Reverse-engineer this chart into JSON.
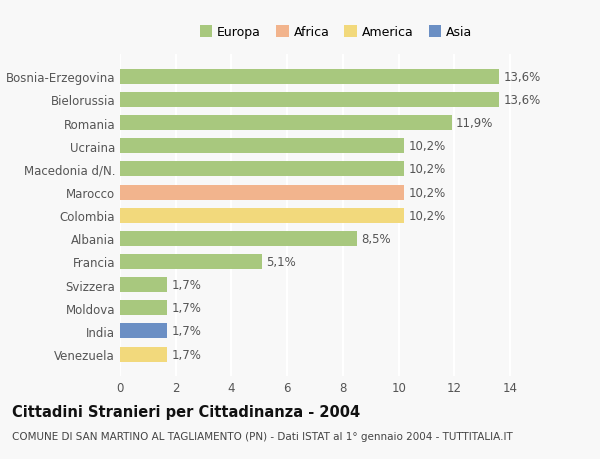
{
  "categories": [
    "Venezuela",
    "India",
    "Moldova",
    "Svizzera",
    "Francia",
    "Albania",
    "Colombia",
    "Marocco",
    "Macedonia d/N.",
    "Ucraina",
    "Romania",
    "Bielorussia",
    "Bosnia-Erzegovina"
  ],
  "values": [
    1.7,
    1.7,
    1.7,
    1.7,
    5.1,
    8.5,
    10.2,
    10.2,
    10.2,
    10.2,
    11.9,
    13.6,
    13.6
  ],
  "labels": [
    "1,7%",
    "1,7%",
    "1,7%",
    "1,7%",
    "5,1%",
    "8,5%",
    "10,2%",
    "10,2%",
    "10,2%",
    "10,2%",
    "11,9%",
    "13,6%",
    "13,6%"
  ],
  "continents": [
    "America",
    "Asia",
    "Europa",
    "Europa",
    "Europa",
    "Europa",
    "America",
    "Africa",
    "Europa",
    "Europa",
    "Europa",
    "Europa",
    "Europa"
  ],
  "colors": {
    "Europa": "#a8c87e",
    "Africa": "#f2b48d",
    "America": "#f2d97c",
    "Asia": "#6b8fc4"
  },
  "legend_order": [
    "Europa",
    "Africa",
    "America",
    "Asia"
  ],
  "xlim": [
    0,
    15.5
  ],
  "xticks": [
    0,
    2,
    4,
    6,
    8,
    10,
    12,
    14
  ],
  "title": "Cittadini Stranieri per Cittadinanza - 2004",
  "subtitle": "COMUNE DI SAN MARTINO AL TAGLIAMENTO (PN) - Dati ISTAT al 1° gennaio 2004 - TUTTITALIA.IT",
  "bg_color": "#f8f8f8",
  "bar_height": 0.65,
  "label_fontsize": 8.5,
  "tick_fontsize": 8.5,
  "title_fontsize": 10.5,
  "subtitle_fontsize": 7.5
}
